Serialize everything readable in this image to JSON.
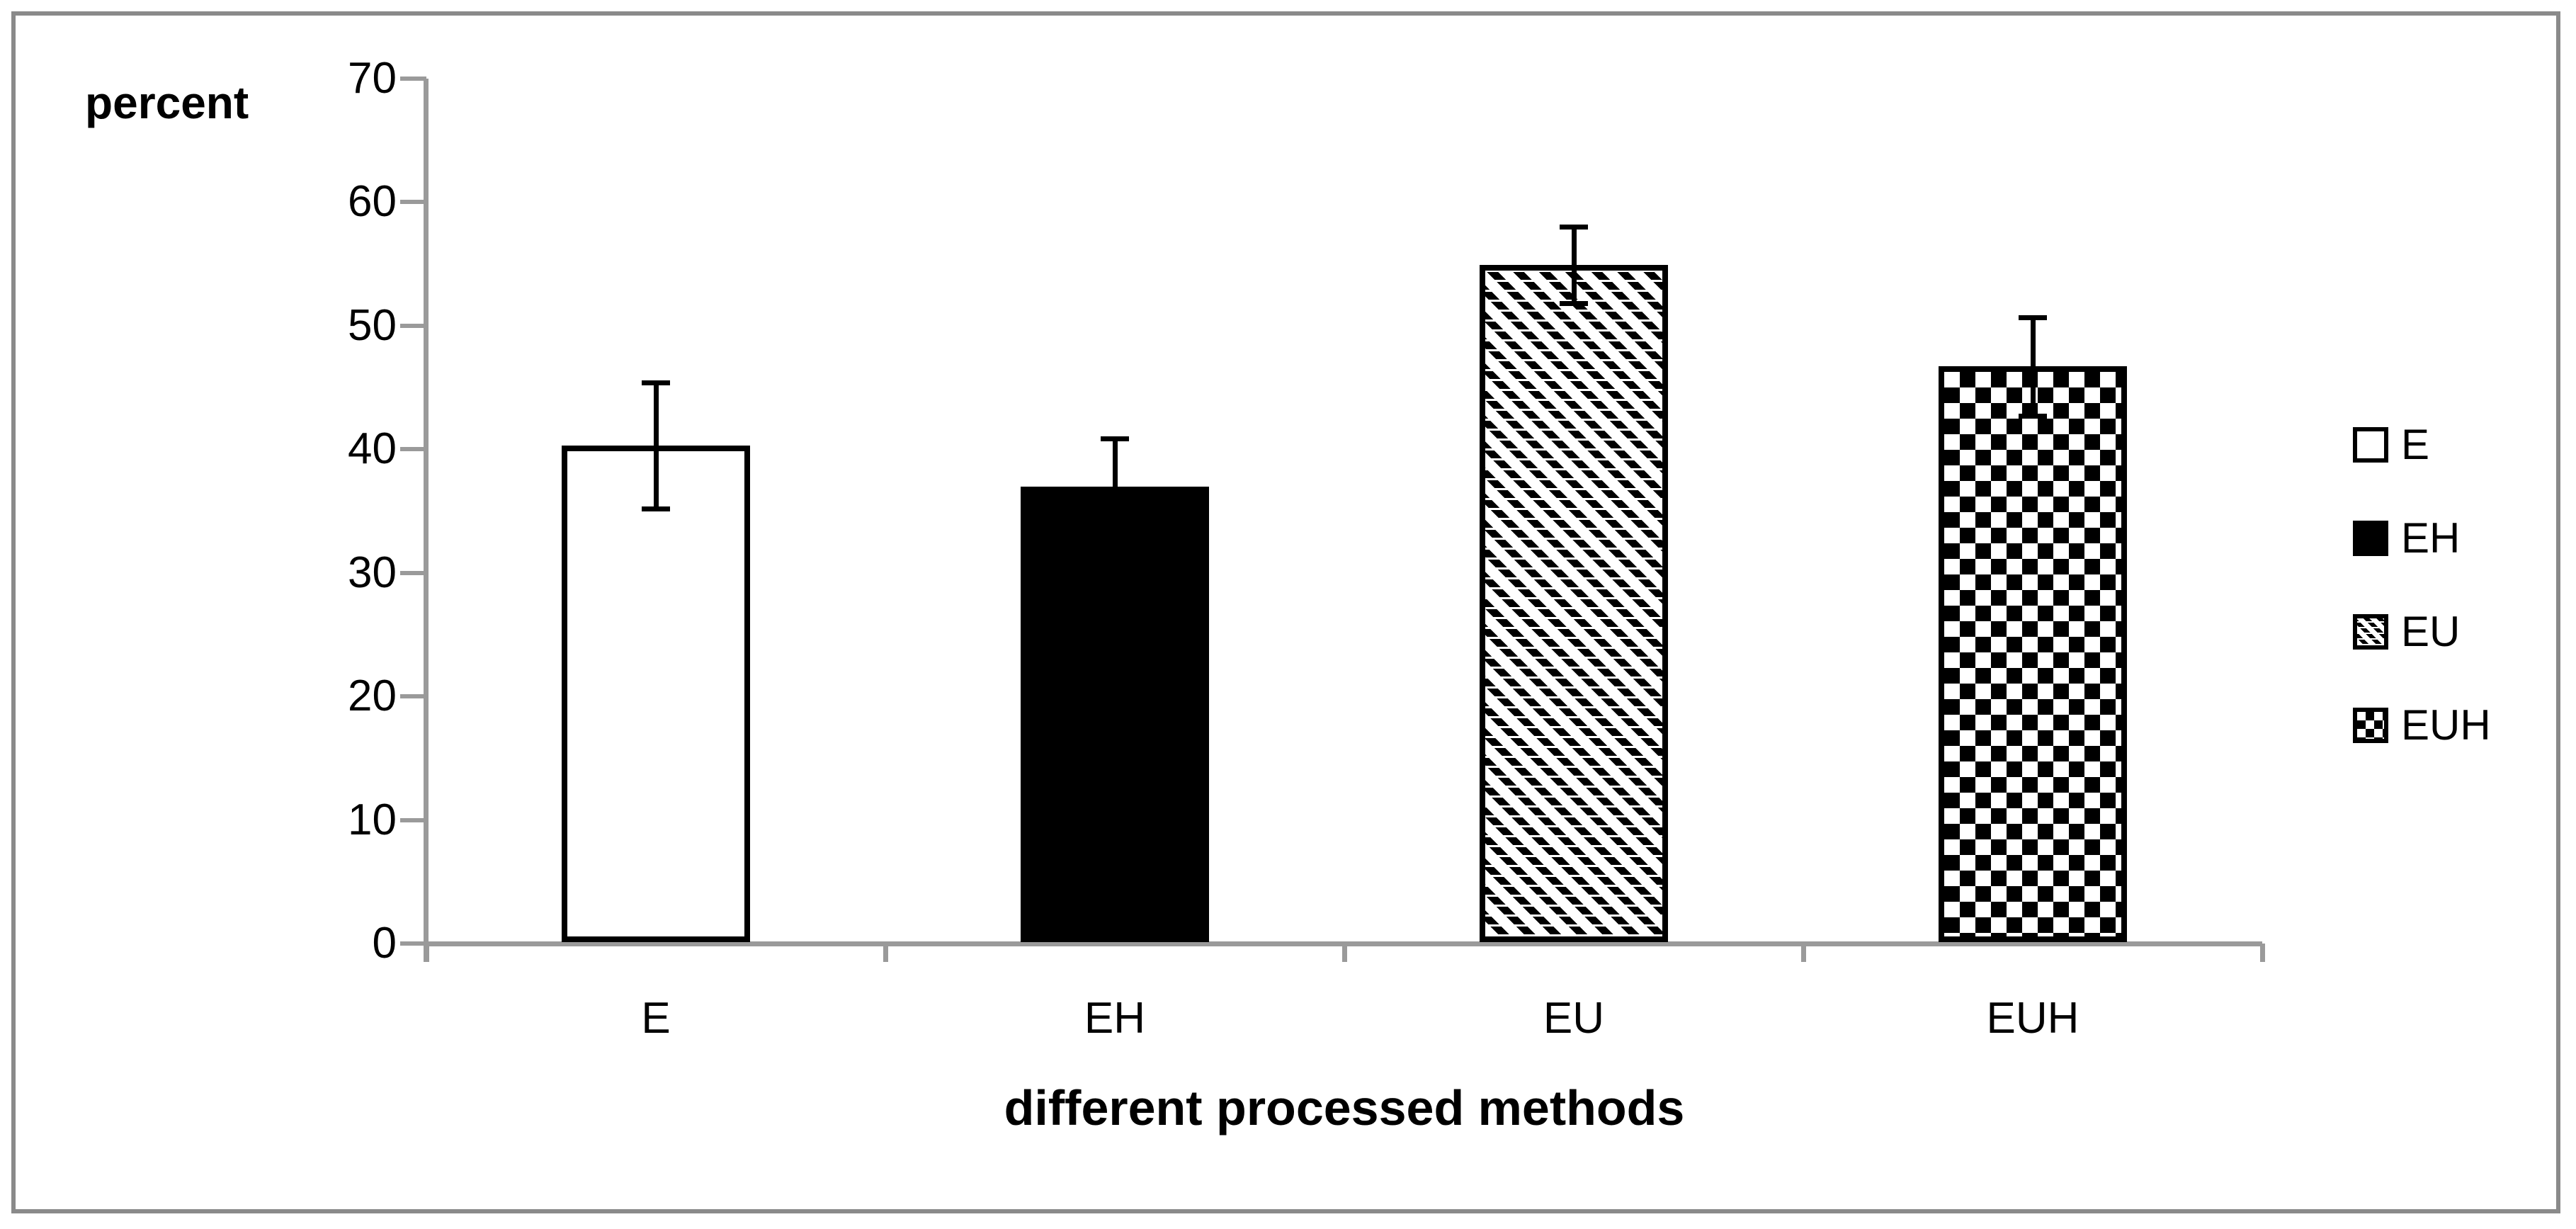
{
  "figure": {
    "y_axis_label": "percent",
    "x_axis_title": "different processed methods"
  },
  "chart_data": {
    "type": "bar",
    "title": "",
    "xlabel": "different processed methods",
    "ylabel": "percent",
    "categories": [
      "E",
      "EH",
      "EU",
      "EUH"
    ],
    "values": [
      40.3,
      37.0,
      54.9,
      46.7
    ],
    "error_bars": [
      5.1,
      3.9,
      3.1,
      4.0
    ],
    "ylim": [
      0,
      70
    ],
    "yticks": [
      0,
      10,
      20,
      30,
      40,
      50,
      60,
      70
    ],
    "grid": false,
    "legend_position": "right",
    "legend": [
      {
        "label": "E",
        "pattern": "white"
      },
      {
        "label": "EH",
        "pattern": "solid"
      },
      {
        "label": "EU",
        "pattern": "diagonal-hatch"
      },
      {
        "label": "EUH",
        "pattern": "checkerboard"
      }
    ],
    "colors": {
      "bar_outline": "#000000",
      "bar_fill_solid": "#000000",
      "axis": "#9a9a9a",
      "frame": "#8a8a8a",
      "background": "#ffffff"
    }
  }
}
